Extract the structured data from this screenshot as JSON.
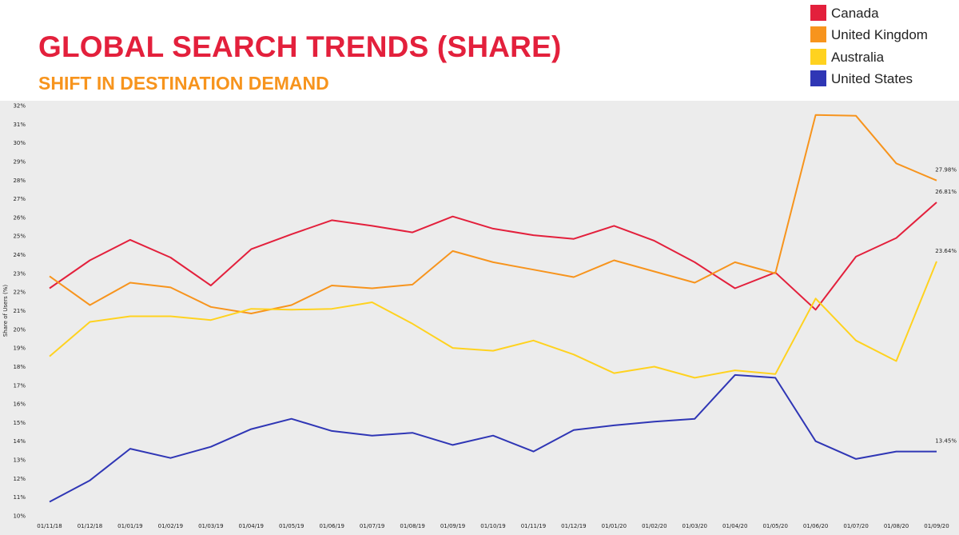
{
  "header": {
    "title": "GLOBAL SEARCH TRENDS (SHARE)",
    "subtitle": "SHIFT IN DESTINATION DEMAND"
  },
  "legend": {
    "items": [
      {
        "label": "Canada",
        "color": "#e3203c"
      },
      {
        "label": "United Kingdom",
        "color": "#f7941d"
      },
      {
        "label": "Australia",
        "color": "#ffd21f"
      },
      {
        "label": "United States",
        "color": "#2f36b5"
      }
    ]
  },
  "chart_data": {
    "type": "line",
    "title": "GLOBAL SEARCH TRENDS (SHARE)",
    "subtitle": "SHIFT IN DESTINATION DEMAND",
    "xlabel": "",
    "ylabel": "Share of Users (%)",
    "ylim": [
      10,
      32
    ],
    "yticks": [
      "10%",
      "11%",
      "12%",
      "13%",
      "14%",
      "15%",
      "16%",
      "17%",
      "18%",
      "19%",
      "20%",
      "21%",
      "22%",
      "23%",
      "24%",
      "25%",
      "26%",
      "27%",
      "28%",
      "29%",
      "30%",
      "31%",
      "32%"
    ],
    "categories": [
      "01/11/18",
      "01/12/18",
      "01/01/19",
      "01/02/19",
      "01/03/19",
      "01/04/19",
      "01/05/19",
      "01/06/19",
      "01/07/19",
      "01/08/19",
      "01/09/19",
      "01/10/19",
      "01/11/19",
      "01/12/19",
      "01/01/20",
      "01/02/20",
      "01/03/20",
      "01/04/20",
      "01/05/20",
      "01/06/20",
      "01/07/20",
      "01/08/20",
      "01/09/20"
    ],
    "grid": false,
    "legend_position": "top-right",
    "series": [
      {
        "name": "Canada",
        "color": "#e3203c",
        "end_label": "26.81%",
        "values": [
          22.2,
          23.7,
          24.8,
          23.85,
          22.35,
          24.3,
          25.1,
          25.85,
          25.55,
          25.2,
          26.05,
          25.4,
          25.05,
          24.85,
          25.55,
          24.75,
          23.6,
          22.2,
          23.05,
          21.05,
          23.9,
          24.9,
          26.81
        ]
      },
      {
        "name": "United Kingdom",
        "color": "#f7941d",
        "end_label": "27.98%",
        "values": [
          22.85,
          21.3,
          22.5,
          22.25,
          21.2,
          20.85,
          21.3,
          22.35,
          22.2,
          22.4,
          24.2,
          23.6,
          23.2,
          22.8,
          23.7,
          23.1,
          22.5,
          23.6,
          23.0,
          31.5,
          31.45,
          28.9,
          27.98
        ]
      },
      {
        "name": "Australia",
        "color": "#ffd21f",
        "end_label": "23.64%",
        "values": [
          18.55,
          20.4,
          20.7,
          20.7,
          20.5,
          21.1,
          21.05,
          21.1,
          21.45,
          20.3,
          19.0,
          18.85,
          19.4,
          18.65,
          17.65,
          18.0,
          17.4,
          17.8,
          17.6,
          21.65,
          19.4,
          18.3,
          23.64
        ]
      },
      {
        "name": "United States",
        "color": "#2f36b5",
        "end_label": "13.45%",
        "values": [
          10.75,
          11.9,
          13.6,
          13.1,
          13.7,
          14.65,
          15.2,
          14.55,
          14.3,
          14.45,
          13.8,
          14.3,
          13.45,
          14.6,
          14.85,
          15.05,
          15.2,
          17.55,
          17.4,
          14.0,
          13.05,
          13.45,
          13.45
        ]
      }
    ]
  }
}
